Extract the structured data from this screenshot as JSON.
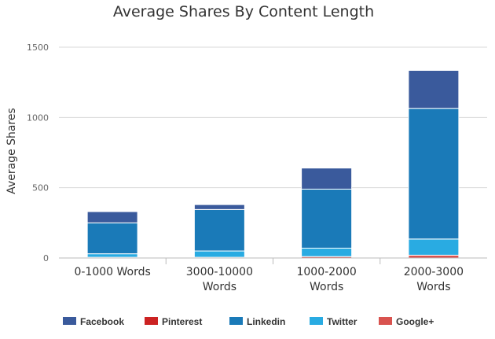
{
  "chart_data": {
    "type": "bar",
    "stacked": true,
    "title": "Average Shares By Content Length",
    "ylabel": "Average Shares",
    "xlabel": "",
    "ylim": [
      0,
      1500
    ],
    "yticks": [
      0,
      500,
      1000,
      1500
    ],
    "grid": true,
    "legend_position": "bottom",
    "categories": [
      [
        "0-1000 Words"
      ],
      [
        "3000-10000",
        "Words"
      ],
      [
        "1000-2000",
        "Words"
      ],
      [
        "2000-3000",
        "Words"
      ]
    ],
    "series": [
      {
        "name": "Google+",
        "color": "#d9534f",
        "values": [
          5,
          5,
          10,
          20
        ]
      },
      {
        "name": "Twitter",
        "color": "#29abe2",
        "values": [
          25,
          45,
          60,
          115
        ]
      },
      {
        "name": "Linkedin",
        "color": "#1a7ab8",
        "values": [
          220,
          295,
          420,
          930
        ]
      },
      {
        "name": "Pinterest",
        "color": "#cc2222",
        "values": [
          0,
          0,
          0,
          0
        ]
      },
      {
        "name": "Facebook",
        "color": "#3a5a9c",
        "values": [
          80,
          35,
          150,
          270
        ]
      }
    ],
    "legend_order": [
      "Facebook",
      "Pinterest",
      "Linkedin",
      "Twitter",
      "Google+"
    ]
  }
}
